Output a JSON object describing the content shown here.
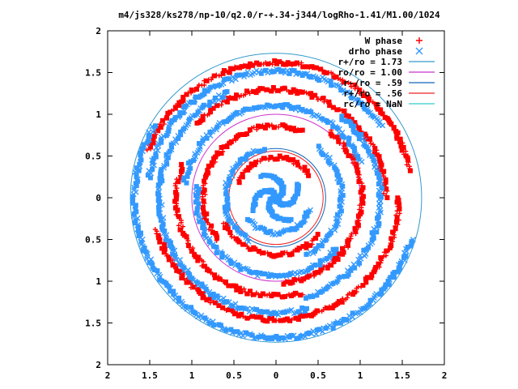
{
  "chart_data": {
    "type": "scatter",
    "title": "m4/js328/ks278/np-10/q2.0/r-+.34-j344/logRho-1.41/M1.00/1024",
    "xlim": [
      -2,
      2
    ],
    "ylim": [
      -2,
      2
    ],
    "x_ticks": [
      -2,
      -1.5,
      -1,
      -0.5,
      0,
      0.5,
      1,
      1.5,
      2
    ],
    "y_ticks": [
      -2,
      -1.5,
      -1,
      -0.5,
      0,
      0.5,
      1,
      1.5,
      2
    ],
    "x_tick_labels": [
      "2",
      "1.5",
      "1",
      "0.5",
      "0",
      "0.5",
      "1",
      "1.5",
      "2"
    ],
    "y_tick_labels": [
      "2",
      "1.5",
      "1",
      "0.5",
      "0",
      "0.5",
      "1",
      "1.5",
      "2"
    ],
    "grid": false,
    "legend_position": "top-right",
    "legend": [
      {
        "label": "W phase",
        "kind": "marker",
        "marker": "+",
        "color": "#ff0000"
      },
      {
        "label": "drho phase",
        "kind": "marker",
        "marker": "x",
        "color": "#3399ff"
      },
      {
        "label": "r+/ro = 1.73",
        "kind": "line",
        "color": "#3399cc"
      },
      {
        "label": "ro/ro = 1.00",
        "kind": "line",
        "color": "#cc33cc"
      },
      {
        "label": "r-/ro = .59",
        "kind": "line",
        "color": "#1166bb"
      },
      {
        "label": "r+/ro = .56",
        "kind": "line",
        "color": "#ee2222"
      },
      {
        "label": "rc/ro = NaN",
        "kind": "line",
        "color": "#33cccc"
      }
    ],
    "circles": [
      {
        "radius": 1.73,
        "color": "#3399cc"
      },
      {
        "radius": 1.0,
        "color": "#cc33cc"
      },
      {
        "radius": 0.59,
        "color": "#1166bb"
      },
      {
        "radius": 0.56,
        "color": "#ee2222"
      }
    ],
    "series": [
      {
        "name": "W phase",
        "color": "#ff0000",
        "rings": [
          {
            "r": 1.62,
            "start": 0.2,
            "span": 2.6
          },
          {
            "r": 1.46,
            "start": 3.4,
            "span": 2.9
          },
          {
            "r": 1.3,
            "start": 0.0,
            "span": 2.4
          },
          {
            "r": 1.18,
            "start": 2.8,
            "span": 2.2
          },
          {
            "r": 1.02,
            "start": 4.8,
            "span": 2.4
          },
          {
            "r": 0.86,
            "start": 1.2,
            "span": 2.6
          },
          {
            "r": 0.68,
            "start": 3.6,
            "span": 2.0
          },
          {
            "r": 0.48,
            "start": 0.6,
            "span": 2.2
          }
        ]
      },
      {
        "name": "drho phase",
        "color": "#3399ff",
        "rings": [
          {
            "r": 1.68,
            "start": 2.6,
            "span": 3.4
          },
          {
            "r": 1.52,
            "start": 0.6,
            "span": 2.4
          },
          {
            "r": 1.38,
            "start": 2.0,
            "span": 3.0
          },
          {
            "r": 1.24,
            "start": 5.0,
            "span": 2.2
          },
          {
            "r": 1.1,
            "start": 0.4,
            "span": 2.6
          },
          {
            "r": 0.94,
            "start": 3.0,
            "span": 2.6
          },
          {
            "r": 0.78,
            "start": 5.2,
            "span": 2.0
          },
          {
            "r": 0.6,
            "start": 1.8,
            "span": 2.4
          },
          {
            "r": 0.42,
            "start": 3.8,
            "span": 2.2
          }
        ],
        "core_arms": 4,
        "core_radius": 0.32
      }
    ]
  }
}
